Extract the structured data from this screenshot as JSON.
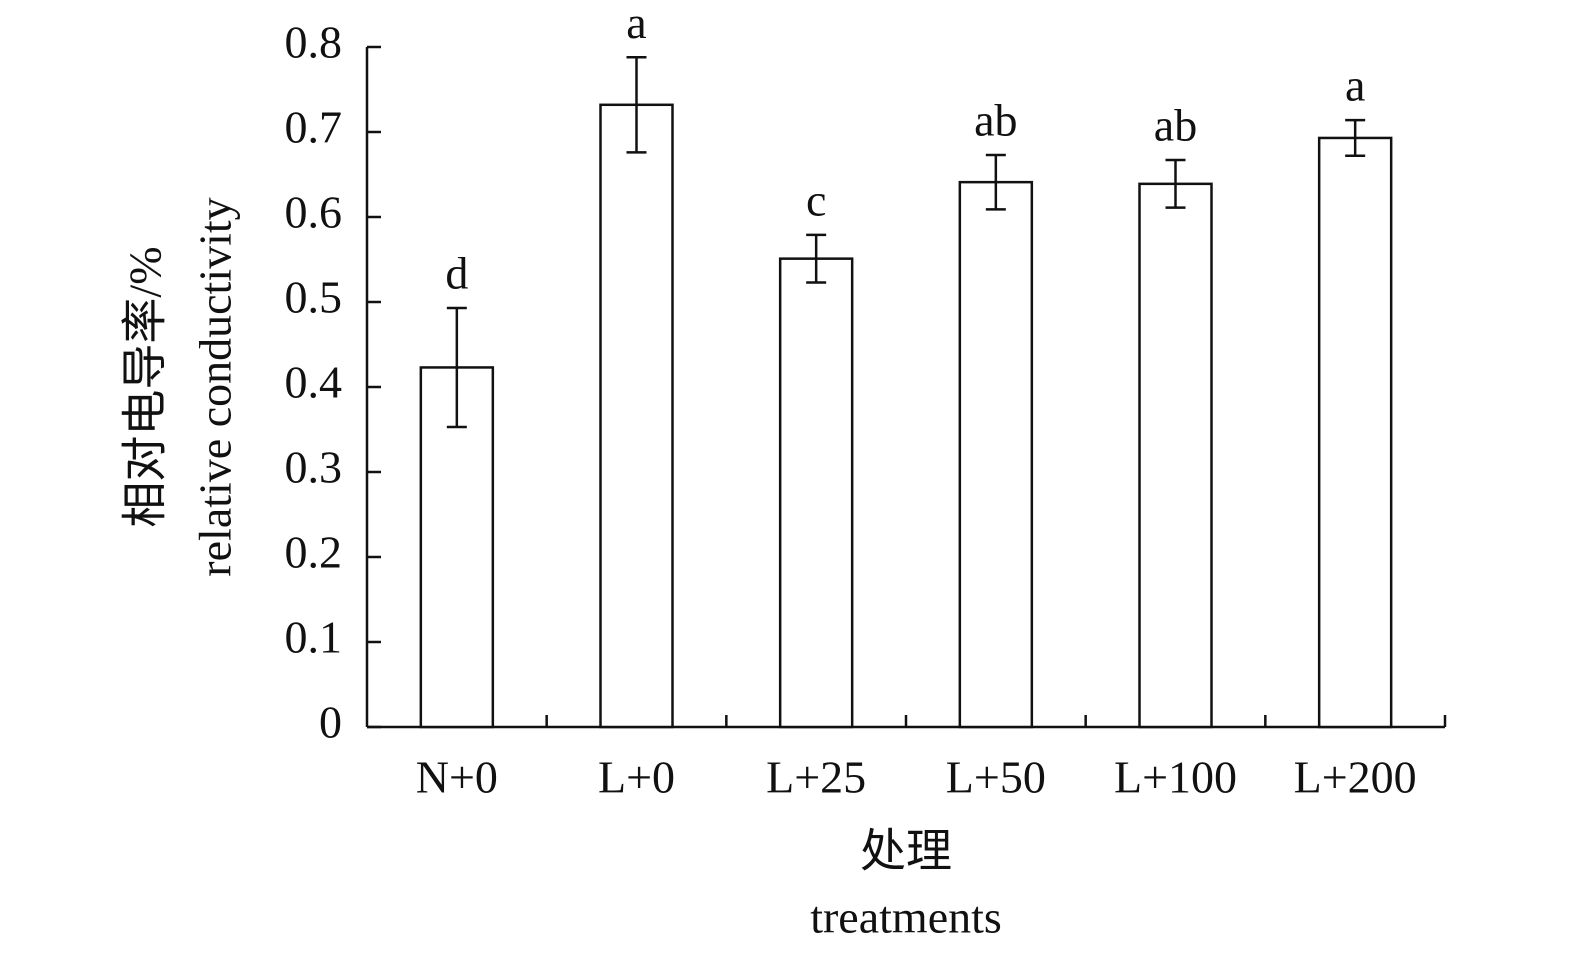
{
  "chart_data": {
    "type": "bar",
    "categories": [
      "N+0",
      "L+0",
      "L+25",
      "L+50",
      "L+100",
      "L+200"
    ],
    "values": [
      0.423,
      0.732,
      0.551,
      0.641,
      0.639,
      0.693
    ],
    "errors": [
      0.07,
      0.056,
      0.028,
      0.032,
      0.028,
      0.021
    ],
    "annotations": [
      "d",
      "a",
      "c",
      "ab",
      "ab",
      "a"
    ],
    "color": "#ffffff",
    "y_label": [
      "相对电导率/%",
      "relative conductivity"
    ],
    "x_label": [
      "处理",
      "treatments"
    ],
    "ylim": [
      0,
      0.8
    ],
    "yticks": [
      0,
      0.1,
      0.2,
      0.3,
      0.4,
      0.5,
      0.6,
      0.7,
      0.8
    ],
    "grid": false
  }
}
